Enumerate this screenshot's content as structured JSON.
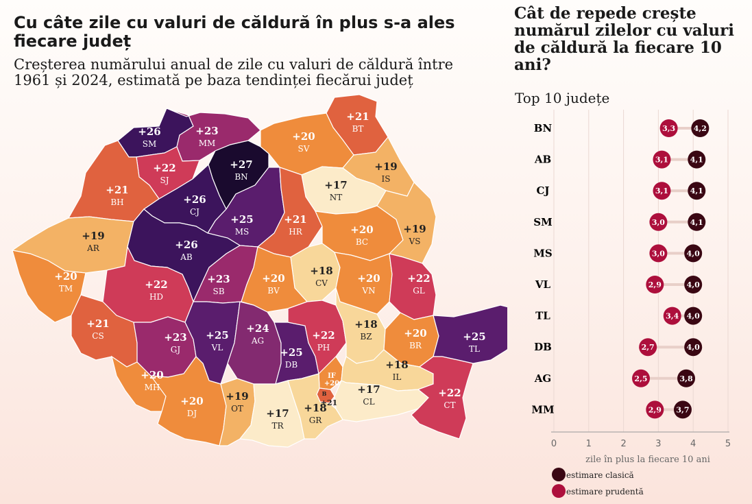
{
  "left": {
    "title": "Cu câte zile cu valuri de căldură în plus s-a ales fiecare județ",
    "subtitle": "Creșterea numărului anual de zile cu valuri de căldură între 1961 și 2024, estimată pe baza tendinței fiecărui județ"
  },
  "right": {
    "title": "Cât de repede crește numărul zilelor cu valuri de căldură la fiecare 10 ani?",
    "subtitle": "Top 10 județe"
  },
  "colors": {
    "v17": "#fcebc9",
    "v18": "#f8d79a",
    "v19": "#f3b265",
    "v20": "#ef8c3c",
    "v21": "#e0623f",
    "v22": "#cf3b58",
    "v23": "#9a2a6c",
    "v24": "#832a70",
    "v25": "#5a1d6d",
    "v26": "#3c145c",
    "v27": "#1a0a2e",
    "classic": "#3a0713",
    "prudent": "#ad0f3c",
    "connector": "#e8cfc8"
  },
  "chart_data": [
    {
      "type": "map",
      "title": "Cu câte zile cu valuri de căldură în plus s-a ales fiecare județ",
      "subtitle": "Creșterea numărului anual de zile cu valuri de căldură între 1961 și 2024, estimată pe baza tendinței fiecărui județ",
      "regions": [
        {
          "code": "SM",
          "label": "+26",
          "value": 26
        },
        {
          "code": "MM",
          "label": "+23",
          "value": 23
        },
        {
          "code": "BT",
          "label": "+21",
          "value": 21
        },
        {
          "code": "SV",
          "label": "+20",
          "value": 20
        },
        {
          "code": "SJ",
          "label": "+22",
          "value": 22
        },
        {
          "code": "BN",
          "label": "+27",
          "value": 27
        },
        {
          "code": "IS",
          "label": "+19",
          "value": 19
        },
        {
          "code": "BH",
          "label": "+21",
          "value": 21
        },
        {
          "code": "NT",
          "label": "+17",
          "value": 17
        },
        {
          "code": "CJ",
          "label": "+26",
          "value": 26
        },
        {
          "code": "MS",
          "label": "+25",
          "value": 25
        },
        {
          "code": "HR",
          "label": "+21",
          "value": 21
        },
        {
          "code": "BC",
          "label": "+20",
          "value": 20
        },
        {
          "code": "VS",
          "label": "+19",
          "value": 19
        },
        {
          "code": "AR",
          "label": "+19",
          "value": 19
        },
        {
          "code": "AB",
          "label": "+26",
          "value": 26
        },
        {
          "code": "TM",
          "label": "+20",
          "value": 20
        },
        {
          "code": "HD",
          "label": "+22",
          "value": 22
        },
        {
          "code": "SB",
          "label": "+23",
          "value": 23
        },
        {
          "code": "CV",
          "label": "+18",
          "value": 18
        },
        {
          "code": "BV",
          "label": "+20",
          "value": 20
        },
        {
          "code": "VN",
          "label": "+20",
          "value": 20
        },
        {
          "code": "GL",
          "label": "+22",
          "value": 22
        },
        {
          "code": "CS",
          "label": "+21",
          "value": 21
        },
        {
          "code": "GJ",
          "label": "+23",
          "value": 23
        },
        {
          "code": "VL",
          "label": "+25",
          "value": 25
        },
        {
          "code": "AG",
          "label": "+24",
          "value": 24
        },
        {
          "code": "DB",
          "label": "+25",
          "value": 25
        },
        {
          "code": "PH",
          "label": "+22",
          "value": 22
        },
        {
          "code": "BZ",
          "label": "+18",
          "value": 18
        },
        {
          "code": "BR",
          "label": "+20",
          "value": 20
        },
        {
          "code": "TL",
          "label": "+25",
          "value": 25
        },
        {
          "code": "MH",
          "label": "+20",
          "value": 20
        },
        {
          "code": "IF",
          "label": "+20",
          "value": 20
        },
        {
          "code": "B",
          "label": "+21",
          "value": 21
        },
        {
          "code": "IL",
          "label": "+18",
          "value": 18
        },
        {
          "code": "DJ",
          "label": "+20",
          "value": 20
        },
        {
          "code": "OT",
          "label": "+19",
          "value": 19
        },
        {
          "code": "TR",
          "label": "+17",
          "value": 17
        },
        {
          "code": "GR",
          "label": "+18",
          "value": 18
        },
        {
          "code": "CL",
          "label": "+17",
          "value": 17
        },
        {
          "code": "CT",
          "label": "+22",
          "value": 22
        }
      ]
    },
    {
      "type": "dot",
      "title": "Cât de repede crește numărul zilelor cu valuri de căldură la fiecare 10 ani?",
      "subtitle": "Top 10 județe",
      "categories": [
        "BN",
        "AB",
        "CJ",
        "SM",
        "MS",
        "VL",
        "TL",
        "DB",
        "AG",
        "MM"
      ],
      "series": [
        {
          "name": "estimare clasică",
          "values": [
            4.2,
            4.1,
            4.1,
            4.1,
            4.0,
            4.0,
            4.0,
            4.0,
            3.8,
            3.7
          ],
          "labels": [
            "4,2",
            "4,1",
            "4,1",
            "4,1",
            "4,0",
            "4,0",
            "4,0",
            "4,0",
            "3,8",
            "3,7"
          ]
        },
        {
          "name": "estimare prudentă",
          "values": [
            3.3,
            3.1,
            3.1,
            3.0,
            3.0,
            2.9,
            3.4,
            2.7,
            2.5,
            2.9
          ],
          "labels": [
            "3,3",
            "3,1",
            "3,1",
            "3,0",
            "3,0",
            "2,9",
            "3,4",
            "2,7",
            "2,5",
            "2,9"
          ]
        }
      ],
      "xlabel": "zile în plus la fiecare 10 ani",
      "xlim": [
        0,
        5
      ],
      "xticks": [
        "0",
        "1",
        "2",
        "3",
        "4",
        "5"
      ],
      "grid": true,
      "legend": "bottom-left"
    }
  ]
}
